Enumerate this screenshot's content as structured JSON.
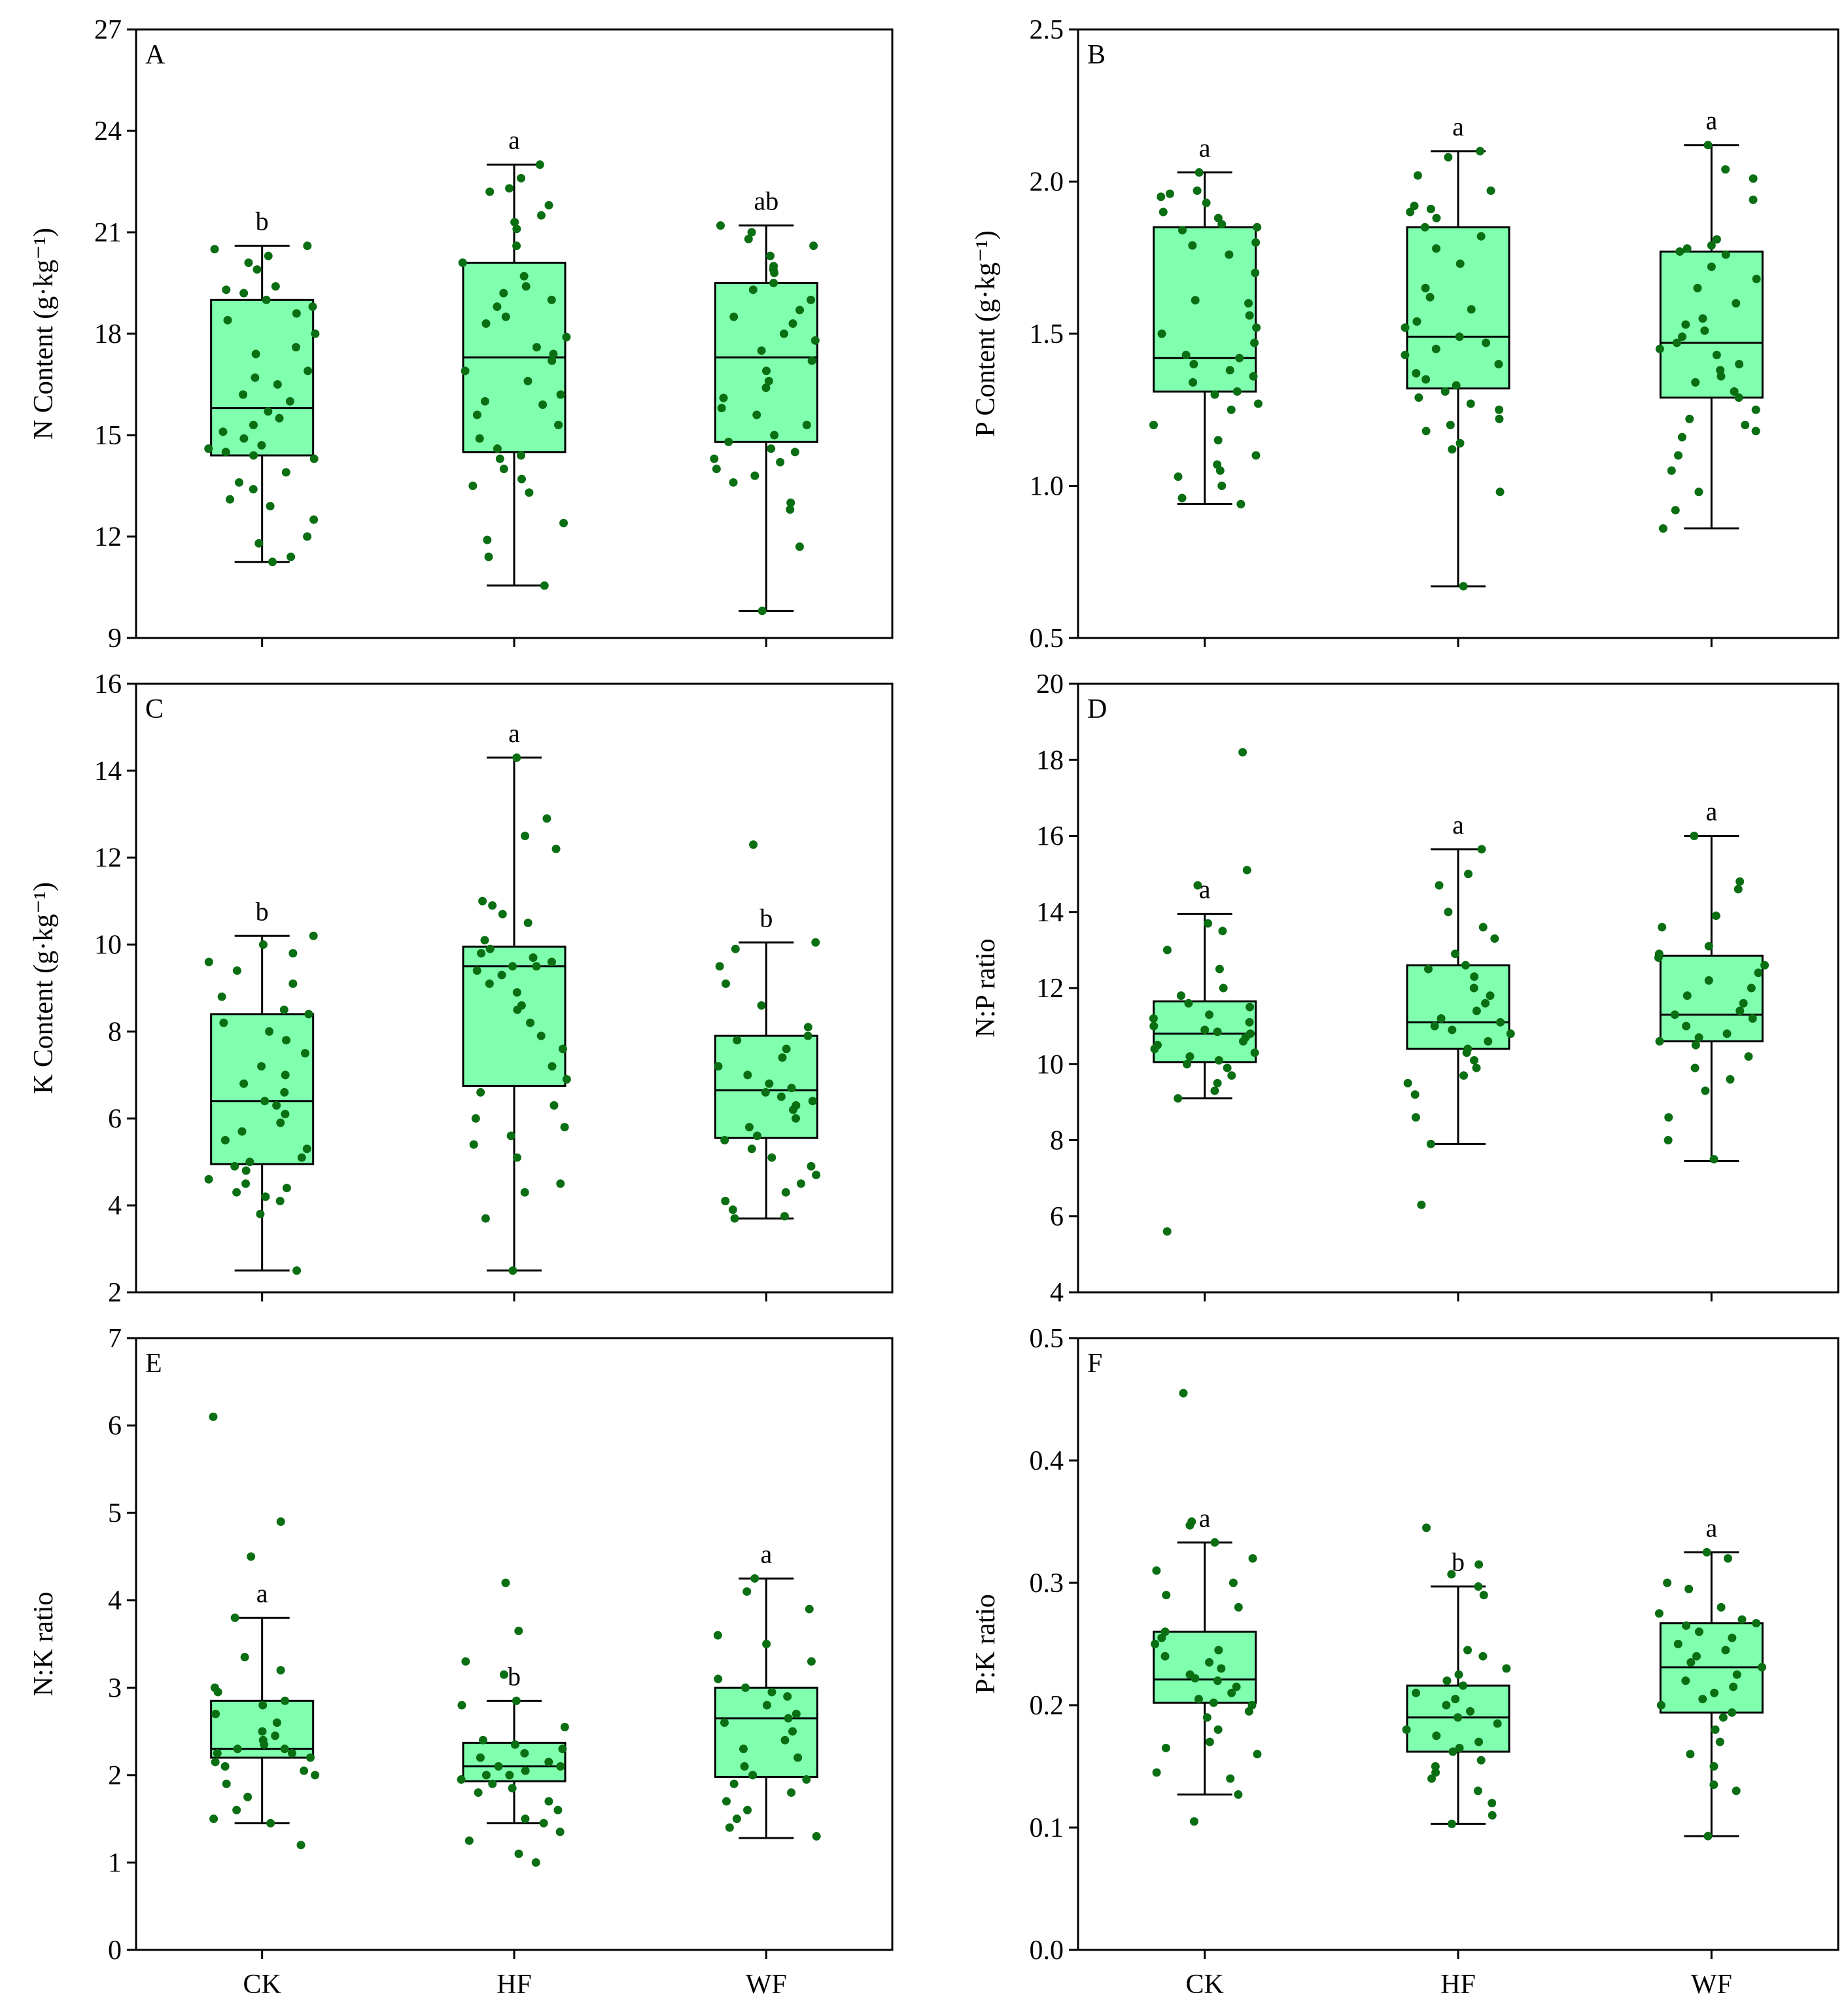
{
  "colors": {
    "box_fill": "#80ffae",
    "point": "#0a6e12",
    "line": "#000000"
  },
  "chart_data": [
    {
      "type": "box",
      "panel": "A",
      "ylabel": "N Content (g·kg⁻¹)",
      "ylim": [
        9,
        27
      ],
      "yticks": [
        9,
        12,
        15,
        18,
        21,
        24,
        27
      ],
      "categories": [
        "CK",
        "HF",
        "WF"
      ],
      "show_xlabels": false,
      "boxes": [
        {
          "category": "CK",
          "min": 11.25,
          "q1": 14.4,
          "median": 15.8,
          "q3": 19.0,
          "max": 20.6,
          "letter": "b",
          "points": [
            20.6,
            20.5,
            20.3,
            20.1,
            19.9,
            19.4,
            19.3,
            19.2,
            19.0,
            18.8,
            18.6,
            18.4,
            18.0,
            17.6,
            17.4,
            16.9,
            16.7,
            16.5,
            16.2,
            16.0,
            15.7,
            15.5,
            15.3,
            15.1,
            14.9,
            14.7,
            14.6,
            14.5,
            14.4,
            14.3,
            13.9,
            13.6,
            13.4,
            13.1,
            12.9,
            12.5,
            12.0,
            11.8,
            11.4,
            11.25
          ]
        },
        {
          "category": "HF",
          "min": 10.55,
          "q1": 14.5,
          "median": 17.3,
          "q3": 20.1,
          "max": 23.0,
          "letter": "a",
          "points": [
            23.0,
            22.6,
            22.3,
            22.2,
            21.8,
            21.5,
            21.3,
            21.1,
            20.6,
            20.1,
            19.7,
            19.4,
            19.2,
            19.0,
            18.8,
            18.5,
            18.3,
            17.9,
            17.6,
            17.4,
            17.2,
            16.9,
            16.6,
            16.2,
            16.0,
            15.9,
            15.6,
            15.3,
            14.9,
            14.6,
            14.4,
            14.3,
            14.0,
            13.7,
            13.5,
            13.3,
            12.4,
            11.9,
            11.4,
            10.55
          ]
        },
        {
          "category": "WF",
          "min": 9.8,
          "q1": 14.8,
          "median": 17.3,
          "q3": 19.5,
          "max": 21.2,
          "letter": "ab",
          "points": [
            21.2,
            21.0,
            20.8,
            20.6,
            20.3,
            20.0,
            19.9,
            19.8,
            19.5,
            19.3,
            19.0,
            18.7,
            18.5,
            18.3,
            18.0,
            17.8,
            17.5,
            17.2,
            16.9,
            16.6,
            16.4,
            16.1,
            15.8,
            15.6,
            15.3,
            15.0,
            14.8,
            14.6,
            14.5,
            14.3,
            14.2,
            14.0,
            13.8,
            13.6,
            13.0,
            12.8,
            11.7,
            9.8
          ]
        }
      ]
    },
    {
      "type": "box",
      "panel": "B",
      "ylabel": "P Content (g·kg⁻¹)",
      "ylim": [
        0.5,
        2.5
      ],
      "yticks": [
        0.5,
        1.0,
        1.5,
        2.0,
        2.5
      ],
      "categories": [
        "CK",
        "HF",
        "WF"
      ],
      "show_xlabels": false,
      "boxes": [
        {
          "category": "CK",
          "min": 0.94,
          "q1": 1.31,
          "median": 1.42,
          "q3": 1.85,
          "max": 2.03,
          "letter": "a",
          "points": [
            2.03,
            1.97,
            1.96,
            1.95,
            1.93,
            1.9,
            1.88,
            1.86,
            1.85,
            1.84,
            1.8,
            1.79,
            1.76,
            1.7,
            1.61,
            1.6,
            1.56,
            1.52,
            1.5,
            1.47,
            1.43,
            1.42,
            1.4,
            1.38,
            1.36,
            1.34,
            1.31,
            1.3,
            1.27,
            1.25,
            1.2,
            1.15,
            1.1,
            1.07,
            1.05,
            1.03,
            1.0,
            0.96,
            0.94
          ]
        },
        {
          "category": "HF",
          "min": 0.67,
          "q1": 1.32,
          "median": 1.49,
          "q3": 1.85,
          "max": 2.1,
          "letter": "a",
          "points": [
            2.1,
            2.08,
            2.02,
            1.97,
            1.92,
            1.91,
            1.9,
            1.88,
            1.85,
            1.82,
            1.78,
            1.73,
            1.65,
            1.62,
            1.58,
            1.54,
            1.52,
            1.49,
            1.47,
            1.45,
            1.43,
            1.4,
            1.37,
            1.35,
            1.33,
            1.31,
            1.29,
            1.27,
            1.25,
            1.22,
            1.2,
            1.18,
            1.14,
            1.12,
            0.98,
            0.67
          ]
        },
        {
          "category": "WF",
          "min": 0.86,
          "q1": 1.29,
          "median": 1.47,
          "q3": 1.77,
          "max": 2.12,
          "letter": "a",
          "points": [
            2.12,
            2.04,
            2.01,
            1.94,
            1.81,
            1.79,
            1.78,
            1.77,
            1.76,
            1.72,
            1.68,
            1.65,
            1.6,
            1.55,
            1.53,
            1.51,
            1.49,
            1.47,
            1.45,
            1.43,
            1.4,
            1.38,
            1.36,
            1.34,
            1.31,
            1.29,
            1.25,
            1.22,
            1.2,
            1.18,
            1.16,
            1.1,
            1.05,
            0.98,
            0.92,
            0.86
          ]
        }
      ]
    },
    {
      "type": "box",
      "panel": "C",
      "ylabel": "K Content (g·kg⁻¹)",
      "ylim": [
        2,
        16
      ],
      "yticks": [
        2,
        4,
        6,
        8,
        10,
        12,
        14,
        16
      ],
      "categories": [
        "CK",
        "HF",
        "WF"
      ],
      "show_xlabels": false,
      "boxes": [
        {
          "category": "CK",
          "min": 2.5,
          "q1": 4.95,
          "median": 6.4,
          "q3": 8.4,
          "max": 10.2,
          "letter": "b",
          "points": [
            10.2,
            10.0,
            9.8,
            9.6,
            9.4,
            9.1,
            8.8,
            8.5,
            8.4,
            8.2,
            8.0,
            7.8,
            7.5,
            7.2,
            7.0,
            6.8,
            6.6,
            6.4,
            6.3,
            6.1,
            5.9,
            5.7,
            5.5,
            5.3,
            5.1,
            5.0,
            4.9,
            4.8,
            4.6,
            4.5,
            4.4,
            4.3,
            4.2,
            4.1,
            3.8,
            2.5
          ]
        },
        {
          "category": "HF",
          "min": 2.5,
          "q1": 6.75,
          "median": 9.5,
          "q3": 9.95,
          "max": 14.3,
          "letter": "a",
          "points": [
            14.3,
            12.9,
            12.5,
            12.2,
            11.0,
            10.9,
            10.7,
            10.5,
            10.1,
            9.9,
            9.8,
            9.7,
            9.6,
            9.5,
            9.5,
            9.4,
            9.3,
            9.1,
            8.9,
            8.6,
            8.5,
            8.2,
            7.9,
            7.6,
            7.2,
            6.9,
            6.6,
            6.3,
            6.0,
            5.8,
            5.6,
            5.4,
            5.1,
            4.5,
            4.3,
            3.7,
            2.5
          ]
        },
        {
          "category": "WF",
          "min": 3.7,
          "q1": 5.55,
          "median": 6.65,
          "q3": 7.9,
          "max": 10.05,
          "letter": "b",
          "points": [
            12.3,
            10.05,
            9.9,
            9.5,
            9.1,
            8.6,
            8.1,
            7.9,
            7.8,
            7.6,
            7.4,
            7.2,
            7.0,
            6.8,
            6.7,
            6.6,
            6.5,
            6.4,
            6.3,
            6.2,
            6.0,
            5.8,
            5.6,
            5.5,
            5.3,
            5.1,
            4.9,
            4.7,
            4.5,
            4.3,
            4.1,
            3.9,
            3.75,
            3.7
          ]
        }
      ]
    },
    {
      "type": "box",
      "panel": "D",
      "ylabel": "N:P ratio",
      "ylim": [
        4,
        20
      ],
      "yticks": [
        4,
        6,
        8,
        10,
        12,
        14,
        16,
        18,
        20
      ],
      "categories": [
        "CK",
        "HF",
        "WF"
      ],
      "show_xlabels": false,
      "boxes": [
        {
          "category": "CK",
          "min": 9.1,
          "q1": 10.05,
          "median": 10.8,
          "q3": 11.65,
          "max": 13.95,
          "letter": "a",
          "points": [
            18.2,
            15.1,
            14.7,
            13.7,
            13.5,
            13.0,
            12.5,
            12.0,
            11.8,
            11.6,
            11.5,
            11.3,
            11.2,
            11.1,
            11.0,
            10.9,
            10.85,
            10.8,
            10.7,
            10.6,
            10.5,
            10.4,
            10.3,
            10.2,
            10.1,
            10.0,
            9.9,
            9.7,
            9.5,
            9.3,
            9.1,
            5.6
          ]
        },
        {
          "category": "HF",
          "min": 7.9,
          "q1": 10.4,
          "median": 11.1,
          "q3": 12.6,
          "max": 15.65,
          "letter": "a",
          "points": [
            15.65,
            15.0,
            14.7,
            14.0,
            13.6,
            13.3,
            12.9,
            12.6,
            12.5,
            12.3,
            12.0,
            11.8,
            11.6,
            11.4,
            11.2,
            11.1,
            11.0,
            10.9,
            10.8,
            10.6,
            10.4,
            10.3,
            10.1,
            9.9,
            9.7,
            9.5,
            9.2,
            8.6,
            7.9,
            6.3
          ]
        },
        {
          "category": "WF",
          "min": 7.45,
          "q1": 10.6,
          "median": 11.3,
          "q3": 12.85,
          "max": 16.0,
          "letter": "a",
          "points": [
            16.0,
            14.8,
            14.6,
            13.9,
            13.6,
            13.1,
            12.9,
            12.8,
            12.6,
            12.4,
            12.2,
            12.0,
            11.8,
            11.6,
            11.4,
            11.3,
            11.2,
            11.0,
            10.8,
            10.7,
            10.6,
            10.5,
            10.2,
            9.9,
            9.6,
            9.3,
            8.6,
            8.0,
            7.5
          ]
        }
      ]
    },
    {
      "type": "box",
      "panel": "E",
      "ylabel": "N:K ratio",
      "ylim": [
        0,
        7
      ],
      "yticks": [
        0,
        1,
        2,
        3,
        4,
        5,
        6,
        7
      ],
      "categories": [
        "CK",
        "HF",
        "WF"
      ],
      "show_xlabels": true,
      "boxes": [
        {
          "category": "CK",
          "min": 1.45,
          "q1": 2.2,
          "median": 2.3,
          "q3": 2.85,
          "max": 3.8,
          "letter": "a",
          "points": [
            6.1,
            4.9,
            4.5,
            3.8,
            3.35,
            3.2,
            3.0,
            2.95,
            2.85,
            2.8,
            2.7,
            2.6,
            2.5,
            2.45,
            2.4,
            2.35,
            2.3,
            2.3,
            2.25,
            2.25,
            2.2,
            2.15,
            2.1,
            2.05,
            2.0,
            1.9,
            1.75,
            1.6,
            1.5,
            1.45,
            1.2
          ]
        },
        {
          "category": "HF",
          "min": 1.45,
          "q1": 1.93,
          "median": 2.1,
          "q3": 2.37,
          "max": 2.85,
          "letter": "b",
          "points": [
            4.2,
            3.65,
            3.3,
            3.15,
            2.85,
            2.8,
            2.55,
            2.4,
            2.35,
            2.3,
            2.25,
            2.2,
            2.15,
            2.1,
            2.1,
            2.05,
            2.0,
            2.0,
            1.95,
            1.9,
            1.85,
            1.8,
            1.7,
            1.6,
            1.5,
            1.45,
            1.35,
            1.25,
            1.1,
            1.0
          ]
        },
        {
          "category": "WF",
          "min": 1.28,
          "q1": 1.98,
          "median": 2.65,
          "q3": 3.0,
          "max": 4.25,
          "letter": "a",
          "points": [
            4.25,
            4.1,
            3.9,
            3.6,
            3.5,
            3.3,
            3.1,
            3.0,
            2.95,
            2.9,
            2.8,
            2.7,
            2.65,
            2.6,
            2.5,
            2.4,
            2.3,
            2.2,
            2.1,
            2.0,
            1.95,
            1.9,
            1.8,
            1.7,
            1.6,
            1.5,
            1.4,
            1.3
          ]
        }
      ]
    },
    {
      "type": "box",
      "panel": "F",
      "ylabel": "P:K ratio",
      "ylim": [
        0.0,
        0.5
      ],
      "yticks": [
        0.0,
        0.1,
        0.2,
        0.3,
        0.4,
        0.5
      ],
      "categories": [
        "CK",
        "HF",
        "WF"
      ],
      "show_xlabels": true,
      "boxes": [
        {
          "category": "CK",
          "min": 0.127,
          "q1": 0.202,
          "median": 0.221,
          "q3": 0.26,
          "max": 0.333,
          "letter": "a",
          "points": [
            0.455,
            0.35,
            0.347,
            0.333,
            0.32,
            0.31,
            0.3,
            0.29,
            0.28,
            0.26,
            0.255,
            0.25,
            0.245,
            0.24,
            0.235,
            0.23,
            0.225,
            0.222,
            0.22,
            0.215,
            0.21,
            0.205,
            0.202,
            0.2,
            0.195,
            0.19,
            0.18,
            0.17,
            0.165,
            0.16,
            0.145,
            0.14,
            0.127,
            0.105
          ]
        },
        {
          "category": "HF",
          "min": 0.103,
          "q1": 0.162,
          "median": 0.19,
          "q3": 0.216,
          "max": 0.297,
          "letter": "b",
          "points": [
            0.345,
            0.315,
            0.307,
            0.297,
            0.29,
            0.245,
            0.24,
            0.23,
            0.225,
            0.22,
            0.216,
            0.21,
            0.205,
            0.2,
            0.195,
            0.19,
            0.185,
            0.18,
            0.175,
            0.17,
            0.165,
            0.162,
            0.155,
            0.15,
            0.145,
            0.14,
            0.13,
            0.12,
            0.11,
            0.103
          ]
        },
        {
          "category": "WF",
          "min": 0.093,
          "q1": 0.194,
          "median": 0.231,
          "q3": 0.267,
          "max": 0.325,
          "letter": "a",
          "points": [
            0.325,
            0.32,
            0.3,
            0.295,
            0.28,
            0.275,
            0.27,
            0.267,
            0.265,
            0.26,
            0.255,
            0.25,
            0.245,
            0.24,
            0.235,
            0.231,
            0.225,
            0.22,
            0.215,
            0.21,
            0.205,
            0.2,
            0.194,
            0.19,
            0.18,
            0.17,
            0.16,
            0.15,
            0.135,
            0.13,
            0.093
          ]
        }
      ]
    }
  ]
}
